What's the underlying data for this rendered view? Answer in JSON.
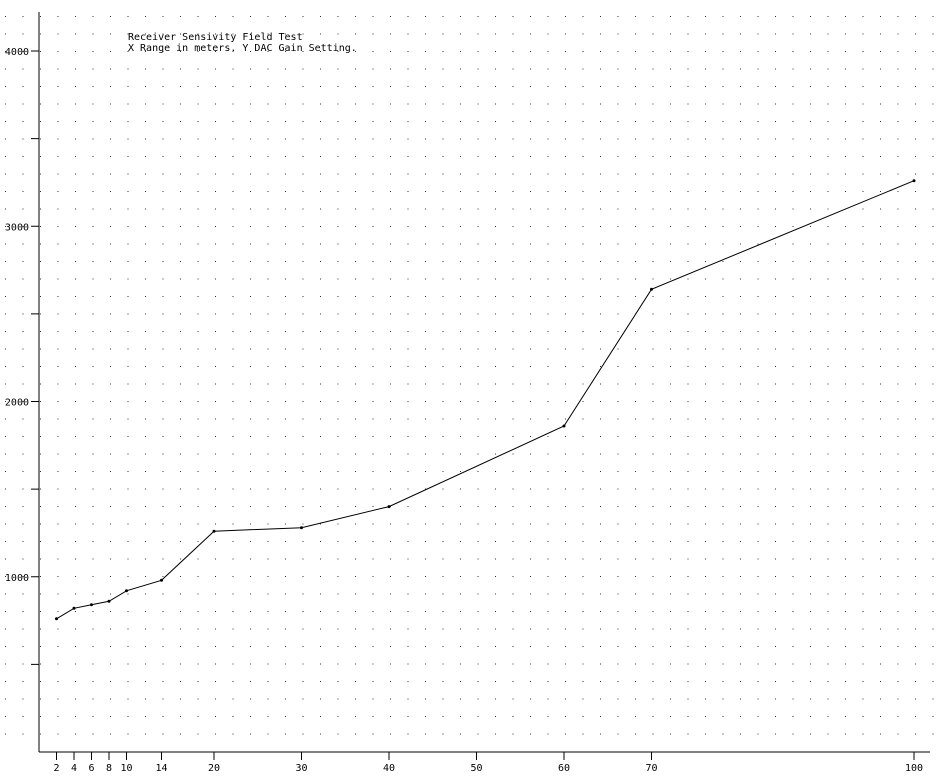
{
  "chart_data": {
    "type": "line",
    "title": "Receiver Sensivity Field Test",
    "subtitle": "X Range in meters. Y DAC Gain Setting.",
    "xlabel": "",
    "ylabel": "",
    "xlim": [
      0,
      101
    ],
    "ylim": [
      0,
      4200
    ],
    "x_ticks": [
      2,
      4,
      6,
      8,
      10,
      14,
      20,
      30,
      40,
      50,
      60,
      70,
      100
    ],
    "y_ticks": [
      1000,
      2000,
      3000,
      4000
    ],
    "y_tick_labels": [
      "1000",
      "2000",
      "3000",
      "4000"
    ],
    "grid": "dotted",
    "series": [
      {
        "x": [
          2,
          4,
          6,
          8,
          10,
          14,
          20,
          30,
          40,
          60,
          70,
          100
        ],
        "y": [
          760,
          820,
          840,
          860,
          920,
          980,
          1260,
          1280,
          1400,
          1860,
          2640,
          3260
        ]
      }
    ]
  }
}
